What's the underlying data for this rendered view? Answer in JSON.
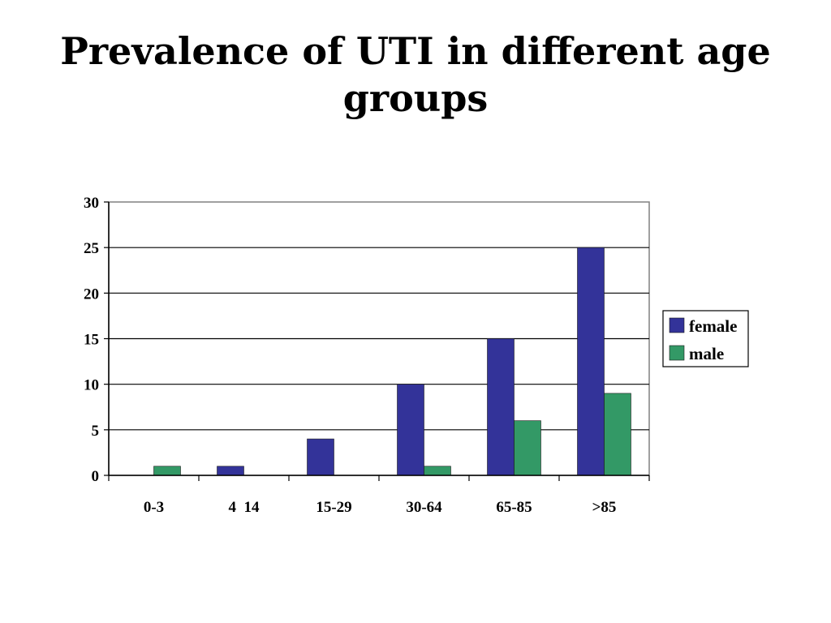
{
  "slide": {
    "title_line1": "Prevalence of UTI in different age",
    "title_line2": "groups"
  },
  "chart_data": {
    "type": "bar",
    "title": "",
    "xlabel": "",
    "ylabel": "",
    "categories": [
      "0-3",
      "4  14",
      "15-29",
      "30-64",
      "65-85",
      ">85"
    ],
    "series": [
      {
        "name": "female",
        "values": [
          0,
          1,
          4,
          10,
          15,
          25
        ],
        "color": "#333399"
      },
      {
        "name": "male",
        "values": [
          1,
          0,
          0,
          1,
          6,
          9
        ],
        "color": "#339966"
      }
    ],
    "ylim": [
      0,
      30
    ],
    "yticks": [
      0,
      5,
      10,
      15,
      20,
      25,
      30
    ],
    "grid": true,
    "legend_position": "right"
  }
}
